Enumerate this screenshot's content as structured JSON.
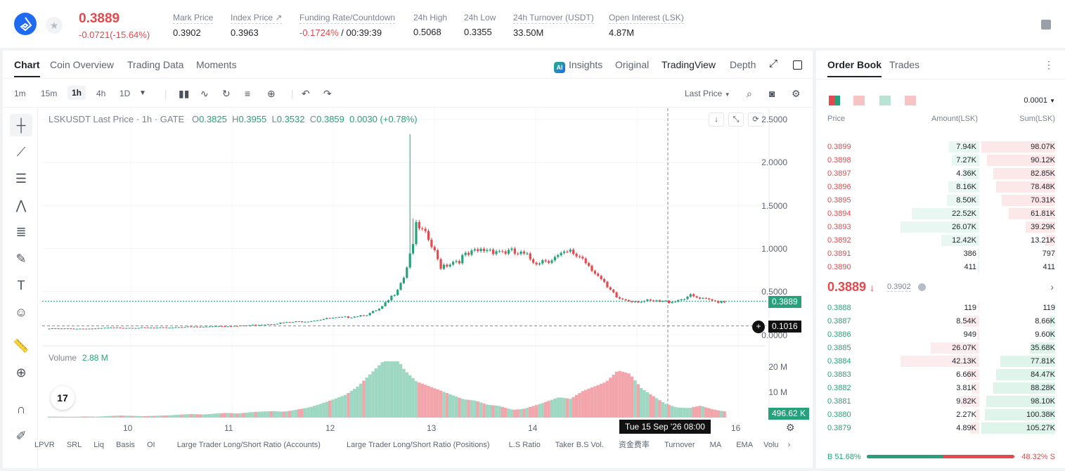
{
  "header": {
    "last_price": "0.3889",
    "change": "-0.0721(-15.64%)",
    "stats": [
      {
        "label": "Mark Price",
        "value": "0.3902"
      },
      {
        "label": "Index Price ↗",
        "value": "0.3963"
      },
      {
        "label": "Funding Rate/Countdown",
        "value": "-0.1724%",
        "value2": "/ 00:39:39"
      },
      {
        "label": "24h High",
        "value": "0.5068"
      },
      {
        "label": "24h Low",
        "value": "0.3355"
      },
      {
        "label": "24h Turnover (USDT)",
        "value": "33.50M"
      },
      {
        "label": "Open Interest (LSK)",
        "value": "4.87M"
      }
    ]
  },
  "chart_tabs": [
    "Chart",
    "Coin Overview",
    "Trading Data",
    "Moments"
  ],
  "view_tabs": [
    "Insights",
    "Original",
    "TradingView",
    "Depth"
  ],
  "ai_badge": "AI",
  "intervals": [
    "1m",
    "15m",
    "1h",
    "4h",
    "1D"
  ],
  "price_type": "Last Price",
  "legend": {
    "symbol": "LSKUSDT Last Price · 1h · GATE",
    "o_label": "O",
    "o": "0.3825",
    "h_label": "H",
    "h": "0.3955",
    "l_label": "L",
    "l": "0.3532",
    "c_label": "C",
    "c": "0.3859",
    "chg": "0.0030 (+0.78%)"
  },
  "y_ticks": [
    "2.5000",
    "2.0000",
    "1.5000",
    "1.0000",
    "0.5000",
    "0.0000"
  ],
  "price_tag": "0.3889",
  "cross_tag": "0.1016",
  "volume": {
    "label": "Volume",
    "value": "2.88 M",
    "ticks": [
      "20 M",
      "10 M"
    ],
    "tag": "496.62 K"
  },
  "x_ticks": [
    "10",
    "11",
    "12",
    "13",
    "14",
    "16"
  ],
  "crosshair_time": "Tue 15 Sep '26   08:00",
  "indicators": [
    "LPVR",
    "SRL",
    "Liq",
    "Basis",
    "OI",
    "Large Trader Long/Short Ratio (Accounts)",
    "Large Trader Long/Short Ratio (Positions)",
    "L.S Ratio",
    "Taker B.S Vol.",
    "资金费率",
    "Turnover",
    "MA",
    "EMA",
    "Volu"
  ],
  "tv_logo": "17",
  "chart_data": {
    "type": "candlestick",
    "title": "LSKUSDT Last Price · 1h · GATE",
    "ylim": [
      0,
      2.5
    ],
    "x_labels": [
      "10",
      "11",
      "12",
      "13",
      "14",
      "15",
      "16"
    ],
    "close_series": [
      0.07,
      0.07,
      0.07,
      0.07,
      0.07,
      0.08,
      0.08,
      0.08,
      0.08,
      0.08,
      0.08,
      0.09,
      0.09,
      0.09,
      0.1,
      0.1,
      0.1,
      0.11,
      0.12,
      0.13,
      0.14,
      0.15,
      0.16,
      0.18,
      0.19,
      0.2,
      0.22,
      0.24,
      0.3,
      0.45,
      0.7,
      1.25,
      1.1,
      0.8,
      0.85,
      0.9,
      0.95,
      1.0,
      0.98,
      0.95,
      0.92,
      0.85,
      0.88,
      0.9,
      0.95,
      0.9,
      0.75,
      0.55,
      0.42,
      0.4,
      0.39,
      0.38,
      0.38,
      0.4,
      0.45,
      0.41,
      0.39,
      0.39
    ],
    "volume_series": [
      0.5,
      0.4,
      0.3,
      0.4,
      0.3,
      0.5,
      0.6,
      0.5,
      0.4,
      0.5,
      0.6,
      0.8,
      1,
      0.9,
      1.2,
      1.5,
      1.4,
      2,
      2.5,
      3,
      3,
      3.5,
      4,
      5,
      6,
      7,
      9,
      12,
      15,
      18,
      13,
      10,
      9,
      8,
      7,
      6,
      6,
      5,
      5,
      4,
      4,
      5,
      6,
      7,
      6,
      8,
      9,
      10,
      13,
      12,
      8,
      6,
      4,
      3,
      3,
      4,
      3,
      2.5
    ],
    "volume_unit": "M"
  },
  "orderbook": {
    "tabs": [
      "Order Book",
      "Trades"
    ],
    "precision": "0.0001",
    "headers": [
      "Price",
      "Amount(LSK)",
      "Sum(LSK)"
    ],
    "asks": [
      {
        "price": "0.3899",
        "amount": "7.94K",
        "sum": "98.07K",
        "amt_pct": 0.38,
        "sum_pct": 1.0
      },
      {
        "price": "0.3898",
        "amount": "7.27K",
        "sum": "90.12K",
        "amt_pct": 0.35,
        "sum_pct": 0.92
      },
      {
        "price": "0.3897",
        "amount": "4.36K",
        "sum": "82.85K",
        "amt_pct": 0.21,
        "sum_pct": 0.84
      },
      {
        "price": "0.3896",
        "amount": "8.16K",
        "sum": "78.48K",
        "amt_pct": 0.39,
        "sum_pct": 0.8
      },
      {
        "price": "0.3895",
        "amount": "8.50K",
        "sum": "70.31K",
        "amt_pct": 0.41,
        "sum_pct": 0.72
      },
      {
        "price": "0.3894",
        "amount": "22.52K",
        "sum": "61.81K",
        "amt_pct": 0.86,
        "sum_pct": 0.63
      },
      {
        "price": "0.3893",
        "amount": "26.07K",
        "sum": "39.29K",
        "amt_pct": 1.0,
        "sum_pct": 0.4
      },
      {
        "price": "0.3892",
        "amount": "12.42K",
        "sum": "13.21K",
        "amt_pct": 0.48,
        "sum_pct": 0.13
      },
      {
        "price": "0.3891",
        "amount": "386",
        "sum": "797",
        "amt_pct": 0.02,
        "sum_pct": 0.01
      },
      {
        "price": "0.3890",
        "amount": "411",
        "sum": "411",
        "amt_pct": 0.02,
        "sum_pct": 0.004
      }
    ],
    "mid_price": "0.3889",
    "mid_arrow": "↓",
    "mid_mark": "0.3902",
    "bids": [
      {
        "price": "0.3888",
        "amount": "119",
        "sum": "119",
        "amt_pct": 0.01,
        "sum_pct": 0.01
      },
      {
        "price": "0.3887",
        "amount": "8.54K",
        "sum": "8.66K",
        "amt_pct": 0.2,
        "sum_pct": 0.08
      },
      {
        "price": "0.3886",
        "amount": "949",
        "sum": "9.60K",
        "amt_pct": 0.03,
        "sum_pct": 0.09
      },
      {
        "price": "0.3885",
        "amount": "26.07K",
        "sum": "35.68K",
        "amt_pct": 0.62,
        "sum_pct": 0.34
      },
      {
        "price": "0.3884",
        "amount": "42.13K",
        "sum": "77.81K",
        "amt_pct": 1.0,
        "sum_pct": 0.74
      },
      {
        "price": "0.3883",
        "amount": "6.66K",
        "sum": "84.47K",
        "amt_pct": 0.16,
        "sum_pct": 0.8
      },
      {
        "price": "0.3882",
        "amount": "3.81K",
        "sum": "88.28K",
        "amt_pct": 0.09,
        "sum_pct": 0.84
      },
      {
        "price": "0.3881",
        "amount": "9.82K",
        "sum": "98.10K",
        "amt_pct": 0.23,
        "sum_pct": 0.93
      },
      {
        "price": "0.3880",
        "amount": "2.27K",
        "sum": "100.38K",
        "amt_pct": 0.05,
        "sum_pct": 0.95
      },
      {
        "price": "0.3879",
        "amount": "4.89K",
        "sum": "105.27K",
        "amt_pct": 0.12,
        "sum_pct": 1.0
      }
    ],
    "buy_label": "B",
    "buy_ratio": "51.68%",
    "sell_ratio": "48.32%",
    "sell_label": "S",
    "buy_fraction": 0.5168
  },
  "colors": {
    "up": "#26a17b",
    "down": "#e5484d",
    "brand": "#1e6bf2"
  }
}
